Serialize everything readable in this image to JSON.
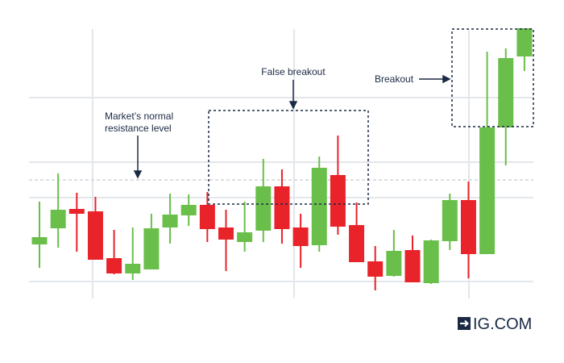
{
  "chart_data": {
    "type": "candlestick",
    "open": [
      107,
      127,
      151,
      148,
      90,
      71,
      76,
      128,
      143,
      156,
      128,
      110,
      124,
      179,
      128,
      106,
      193,
      131,
      86,
      68,
      100,
      59,
      111,
      162,
      95,
      252,
      340
    ],
    "high": [
      160,
      195,
      171,
      166,
      125,
      128,
      145,
      170,
      169,
      172,
      150,
      160,
      213,
      200,
      145,
      216,
      242,
      159,
      105,
      125,
      118,
      113,
      170,
      185,
      346,
      350,
      375
    ],
    "low": [
      78,
      103,
      98,
      88,
      70,
      63,
      76,
      108,
      130,
      110,
      74,
      98,
      110,
      108,
      78,
      98,
      119,
      85,
      50,
      67,
      60,
      58,
      100,
      65,
      95,
      205,
      322
    ],
    "close": [
      116,
      150,
      145,
      88,
      71,
      83,
      127,
      144,
      156,
      126,
      113,
      122,
      179,
      126,
      105,
      202,
      129,
      85,
      67,
      99,
      60,
      112,
      162,
      95,
      252,
      338,
      375
    ],
    "up_color": "#6abf4b",
    "down_color": "#e8232a",
    "ylim": [
      40,
      410
    ],
    "annotations": [
      {
        "lines": [
          "Market’s normal",
          "resistance level"
        ]
      },
      {
        "lines": [
          "False breakout"
        ]
      },
      {
        "lines": [
          "Breakout"
        ]
      }
    ],
    "logo": "IG.COM"
  }
}
